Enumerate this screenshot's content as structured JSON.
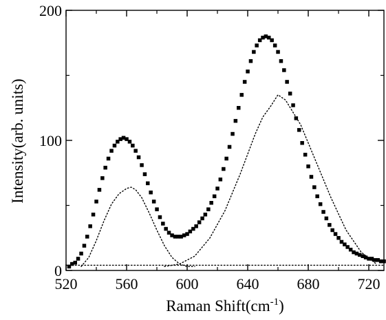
{
  "chart_data": {
    "type": "scatter",
    "title": "",
    "xlabel": "Raman Shift(cm",
    "xlabel_sup": "-1",
    "xlabel_close": ")",
    "ylabel": "Intensity(arb. units)",
    "xlim": [
      520,
      730
    ],
    "ylim": [
      0,
      200
    ],
    "xticks": [
      520,
      560,
      600,
      640,
      680,
      720
    ],
    "yticks": [
      0,
      100,
      200
    ],
    "xtick_labels": [
      "520",
      "560",
      "600",
      "640",
      "680",
      "720"
    ],
    "ytick_labels": [
      "0",
      "100",
      "200"
    ],
    "grid": false,
    "legend": "none",
    "marker_color": "#000000",
    "series": [
      {
        "style": "square-markers",
        "x": [
          522,
          524,
          526,
          528,
          530,
          532,
          534,
          536,
          538,
          540,
          542,
          544,
          546,
          548,
          550,
          552,
          554,
          556,
          558,
          560,
          562,
          564,
          566,
          568,
          570,
          572,
          574,
          576,
          578,
          580,
          582,
          584,
          586,
          588,
          590,
          592,
          594,
          596,
          598,
          600,
          602,
          604,
          606,
          608,
          610,
          612,
          614,
          616,
          618,
          620,
          622,
          624,
          626,
          628,
          630,
          632,
          634,
          636,
          638,
          640,
          642,
          644,
          646,
          648,
          650,
          652,
          654,
          656,
          658,
          660,
          662,
          664,
          666,
          668,
          670,
          672,
          674,
          676,
          678,
          680,
          682,
          684,
          686,
          688,
          690,
          692,
          694,
          696,
          698,
          700,
          702,
          704,
          706,
          708,
          710,
          712,
          714,
          716,
          718,
          720,
          722,
          724,
          726,
          728,
          730
        ],
        "y": [
          3,
          5,
          6,
          9,
          13,
          19,
          26,
          34,
          43,
          53,
          62,
          71,
          79,
          86,
          92,
          96,
          99,
          101,
          102,
          101,
          99,
          96,
          92,
          87,
          81,
          74,
          67,
          60,
          53,
          47,
          41,
          36,
          32,
          29,
          27,
          26,
          26,
          26,
          27,
          28,
          30,
          32,
          34,
          37,
          40,
          43,
          47,
          52,
          57,
          63,
          70,
          78,
          86,
          95,
          105,
          115,
          125,
          135,
          145,
          153,
          161,
          168,
          173,
          177,
          179,
          180,
          179,
          177,
          173,
          168,
          161,
          154,
          145,
          136,
          127,
          117,
          108,
          98,
          89,
          80,
          72,
          64,
          57,
          51,
          45,
          40,
          35,
          31,
          28,
          25,
          22,
          20,
          18,
          16,
          14,
          13,
          12,
          11,
          10,
          9,
          9,
          8,
          8,
          7,
          7
        ]
      },
      {
        "style": "dotted",
        "x": [
          530,
          535,
          540,
          545,
          550,
          555,
          560,
          563,
          566,
          570,
          575,
          580,
          585,
          590,
          595,
          600,
          605
        ],
        "y": [
          3,
          10,
          23,
          38,
          51,
          59,
          63,
          64,
          62,
          56,
          44,
          31,
          19,
          10,
          5,
          3,
          3
        ]
      },
      {
        "style": "dotted",
        "x": [
          585,
          595,
          605,
          615,
          625,
          635,
          645,
          650,
          655,
          660,
          665,
          675,
          685,
          695,
          705,
          715,
          725
        ],
        "y": [
          3,
          5,
          11,
          25,
          46,
          74,
          105,
          118,
          126,
          135,
          131,
          112,
          84,
          56,
          31,
          14,
          5
        ]
      },
      {
        "style": "dotted",
        "x": [
          520,
          560,
          600,
          640,
          680,
          720,
          730
        ],
        "y": [
          4,
          4,
          4,
          4,
          4,
          4,
          4
        ]
      }
    ]
  }
}
